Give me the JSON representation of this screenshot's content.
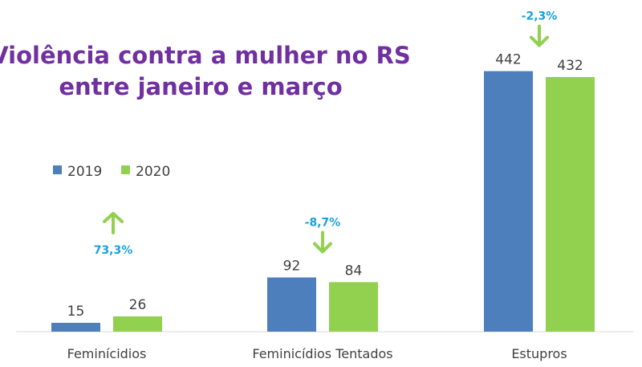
{
  "chart_data": {
    "type": "bar",
    "title_lines": [
      "Violência contra a mulher no RS",
      "entre janeiro e março"
    ],
    "categories": [
      "Feminícidios",
      "Feminicídios Tentados",
      "Estupros"
    ],
    "series": [
      {
        "name": "2019",
        "values": [
          15,
          92,
          442
        ],
        "color": "#4e7fbd"
      },
      {
        "name": "2020",
        "values": [
          26,
          84,
          432
        ],
        "color": "#92d050"
      }
    ],
    "changes": [
      {
        "label": "73,3%",
        "direction": "up"
      },
      {
        "label": "-8,7%",
        "direction": "down"
      },
      {
        "label": "-2,3%",
        "direction": "down"
      }
    ],
    "ylim": [
      0,
      500
    ],
    "grid": false,
    "legend_position": "left-middle"
  },
  "colors": {
    "title": "#7030a0",
    "change_text": "#1aa0dc",
    "arrow": "#92d050",
    "axis": "#d9d9d9",
    "text": "#404040"
  }
}
